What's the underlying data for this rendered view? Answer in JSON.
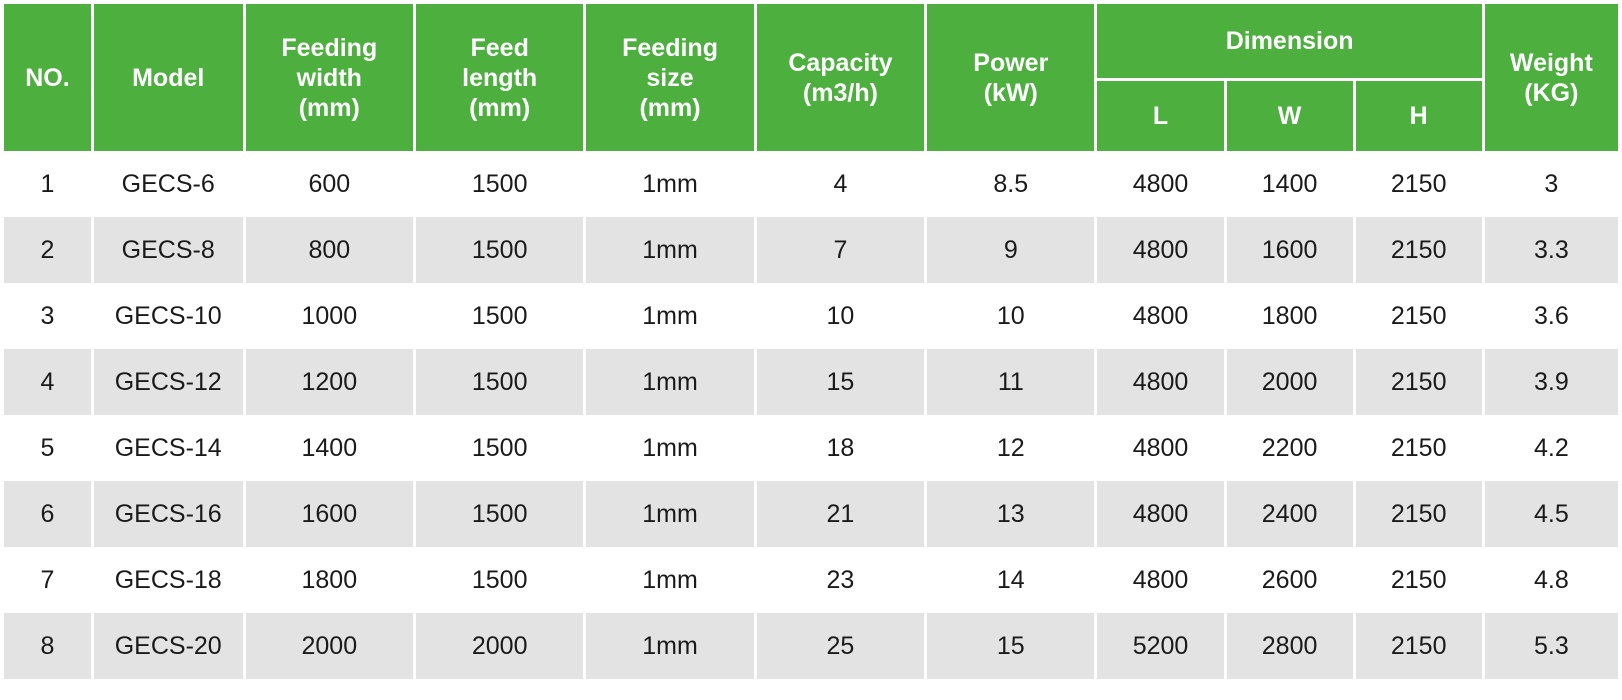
{
  "colors": {
    "header_bg": "#4caf3e",
    "header_text": "#ffffff",
    "stripe_bg": "#e3e3e3",
    "row_bg": "#ffffff",
    "cell_text": "#1a1a1a"
  },
  "table": {
    "headers": {
      "no": "NO.",
      "model": "Model",
      "feeding_width": [
        "Feeding",
        "width",
        "(mm)"
      ],
      "feed_length": [
        "Feed",
        "length",
        "(mm)"
      ],
      "feeding_size": [
        "Feeding",
        "size",
        "(mm)"
      ],
      "capacity": [
        "Capacity",
        "(m3/h)"
      ],
      "power": [
        "Power",
        "(kW)"
      ],
      "dimension": "Dimension",
      "dim_l": "L",
      "dim_w": "W",
      "dim_h": "H",
      "weight": [
        "Weight",
        "(KG)"
      ]
    },
    "rows": [
      {
        "no": "1",
        "model": "GECS-6",
        "feeding_width": "600",
        "feed_length": "1500",
        "feeding_size": "1mm",
        "capacity": "4",
        "power": "8.5",
        "l": "4800",
        "w": "1400",
        "h": "2150",
        "weight": "3"
      },
      {
        "no": "2",
        "model": "GECS-8",
        "feeding_width": "800",
        "feed_length": "1500",
        "feeding_size": "1mm",
        "capacity": "7",
        "power": "9",
        "l": "4800",
        "w": "1600",
        "h": "2150",
        "weight": "3.3"
      },
      {
        "no": "3",
        "model": "GECS-10",
        "feeding_width": "1000",
        "feed_length": "1500",
        "feeding_size": "1mm",
        "capacity": "10",
        "power": "10",
        "l": "4800",
        "w": "1800",
        "h": "2150",
        "weight": "3.6"
      },
      {
        "no": "4",
        "model": "GECS-12",
        "feeding_width": "1200",
        "feed_length": "1500",
        "feeding_size": "1mm",
        "capacity": "15",
        "power": "11",
        "l": "4800",
        "w": "2000",
        "h": "2150",
        "weight": "3.9"
      },
      {
        "no": "5",
        "model": "GECS-14",
        "feeding_width": "1400",
        "feed_length": "1500",
        "feeding_size": "1mm",
        "capacity": "18",
        "power": "12",
        "l": "4800",
        "w": "2200",
        "h": "2150",
        "weight": "4.2"
      },
      {
        "no": "6",
        "model": "GECS-16",
        "feeding_width": "1600",
        "feed_length": "1500",
        "feeding_size": "1mm",
        "capacity": "21",
        "power": "13",
        "l": "4800",
        "w": "2400",
        "h": "2150",
        "weight": "4.5"
      },
      {
        "no": "7",
        "model": "GECS-18",
        "feeding_width": "1800",
        "feed_length": "1500",
        "feeding_size": "1mm",
        "capacity": "23",
        "power": "14",
        "l": "4800",
        "w": "2600",
        "h": "2150",
        "weight": "4.8"
      },
      {
        "no": "8",
        "model": "GECS-20",
        "feeding_width": "2000",
        "feed_length": "2000",
        "feeding_size": "1mm",
        "capacity": "25",
        "power": "15",
        "l": "5200",
        "w": "2800",
        "h": "2150",
        "weight": "5.3"
      }
    ]
  }
}
